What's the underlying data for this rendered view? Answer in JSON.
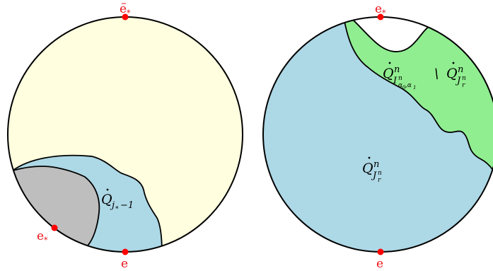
{
  "colors": {
    "outline": "#000000",
    "disk_fill_left": "#ffffe0",
    "region_blue": "#add8e6",
    "region_gray": "#bebebe",
    "region_green": "#90ee90",
    "point_red": "#ff0000",
    "label_red": "#e8141a"
  },
  "left_disk": {
    "top_point_label": "e",
    "top_point_sub": "*",
    "bottom_point_label": "e",
    "left_point_label": "e",
    "left_point_sub": "*",
    "region_label_base": "Q",
    "region_label_sub": "j",
    "region_label_sub2": "*",
    "region_label_sub3": "−1"
  },
  "right_disk": {
    "top_point_label": "e",
    "top_point_sub": "*",
    "bottom_point_label": "e",
    "green_label_base": "Q",
    "green_label_sup": "n",
    "green_label_sub": "I",
    "green_label_sub_sup": "n",
    "green_label_sub_sub": "α",
    "green_label_sub_sub0": "0",
    "green_label_sub_comma": ",α",
    "green_label_sub_sub1": "1",
    "setminus": "\\",
    "green_label_base2": "Q",
    "green_label_sup2": "n",
    "green_label_sub2": "J",
    "green_label_sub2_sub": "r",
    "green_label_sub2_sup": "n",
    "blue_label_base": "Q",
    "blue_label_sup": "n",
    "blue_label_sub": "J",
    "blue_label_sub_sub": "r",
    "blue_label_sub_sup": "n"
  }
}
